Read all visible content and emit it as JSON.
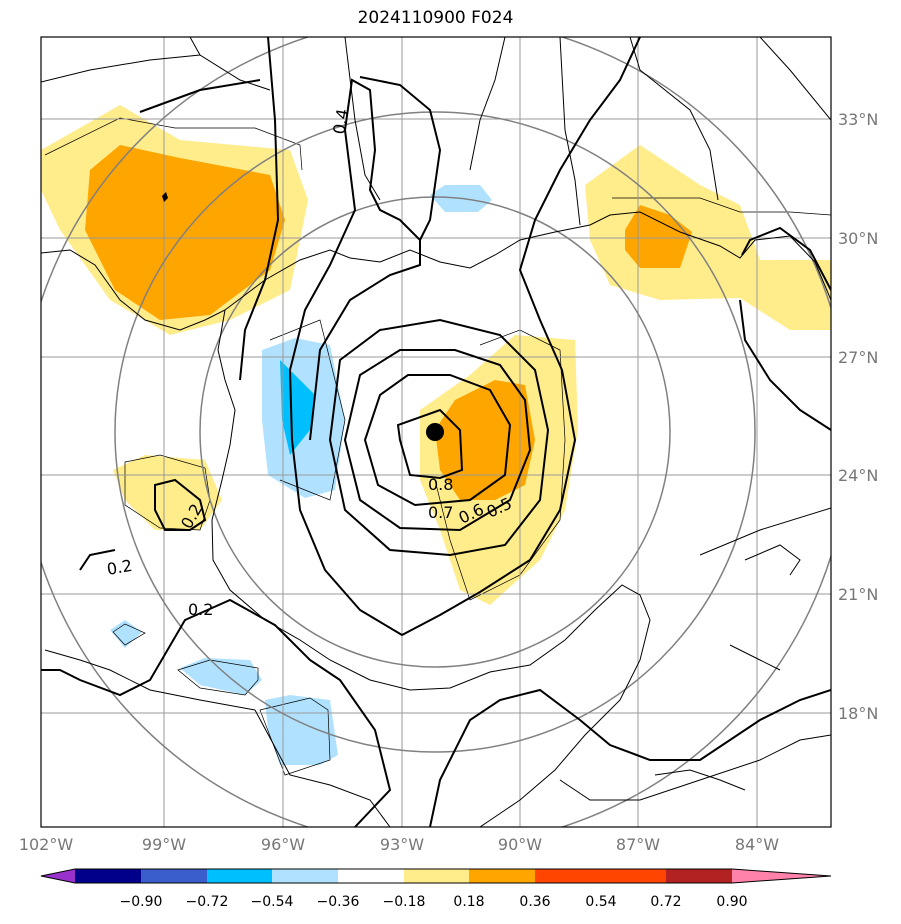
{
  "title": "2024110900 F024",
  "lon_labels": [
    "102°W",
    "99°W",
    "96°W",
    "93°W",
    "90°W",
    "87°W",
    "84°W"
  ],
  "lat_labels": [
    "33°N",
    "30°N",
    "27°N",
    "24°N",
    "21°N",
    "18°N"
  ],
  "colorbar": {
    "ticks": [
      "−0.90",
      "−0.72",
      "−0.54",
      "−0.36",
      "−0.18",
      "0.18",
      "0.36",
      "0.54",
      "0.72",
      "0.90"
    ],
    "colors": [
      "#9932CC",
      "#00008B",
      "#3A5FCD",
      "#00BFFF",
      "#B0E2FF",
      "#FFFFFF",
      "#FFEC8B",
      "#FFA500",
      "#FF4500",
      "#B22222",
      "#FF82AB"
    ]
  },
  "contour_labels": [
    "0.8",
    "0.7",
    "0.6",
    "0.5",
    "0.4",
    "0.2",
    "0.2",
    "0.2"
  ],
  "storm_center": {
    "lon": -92.3,
    "lat": 25.0
  }
}
